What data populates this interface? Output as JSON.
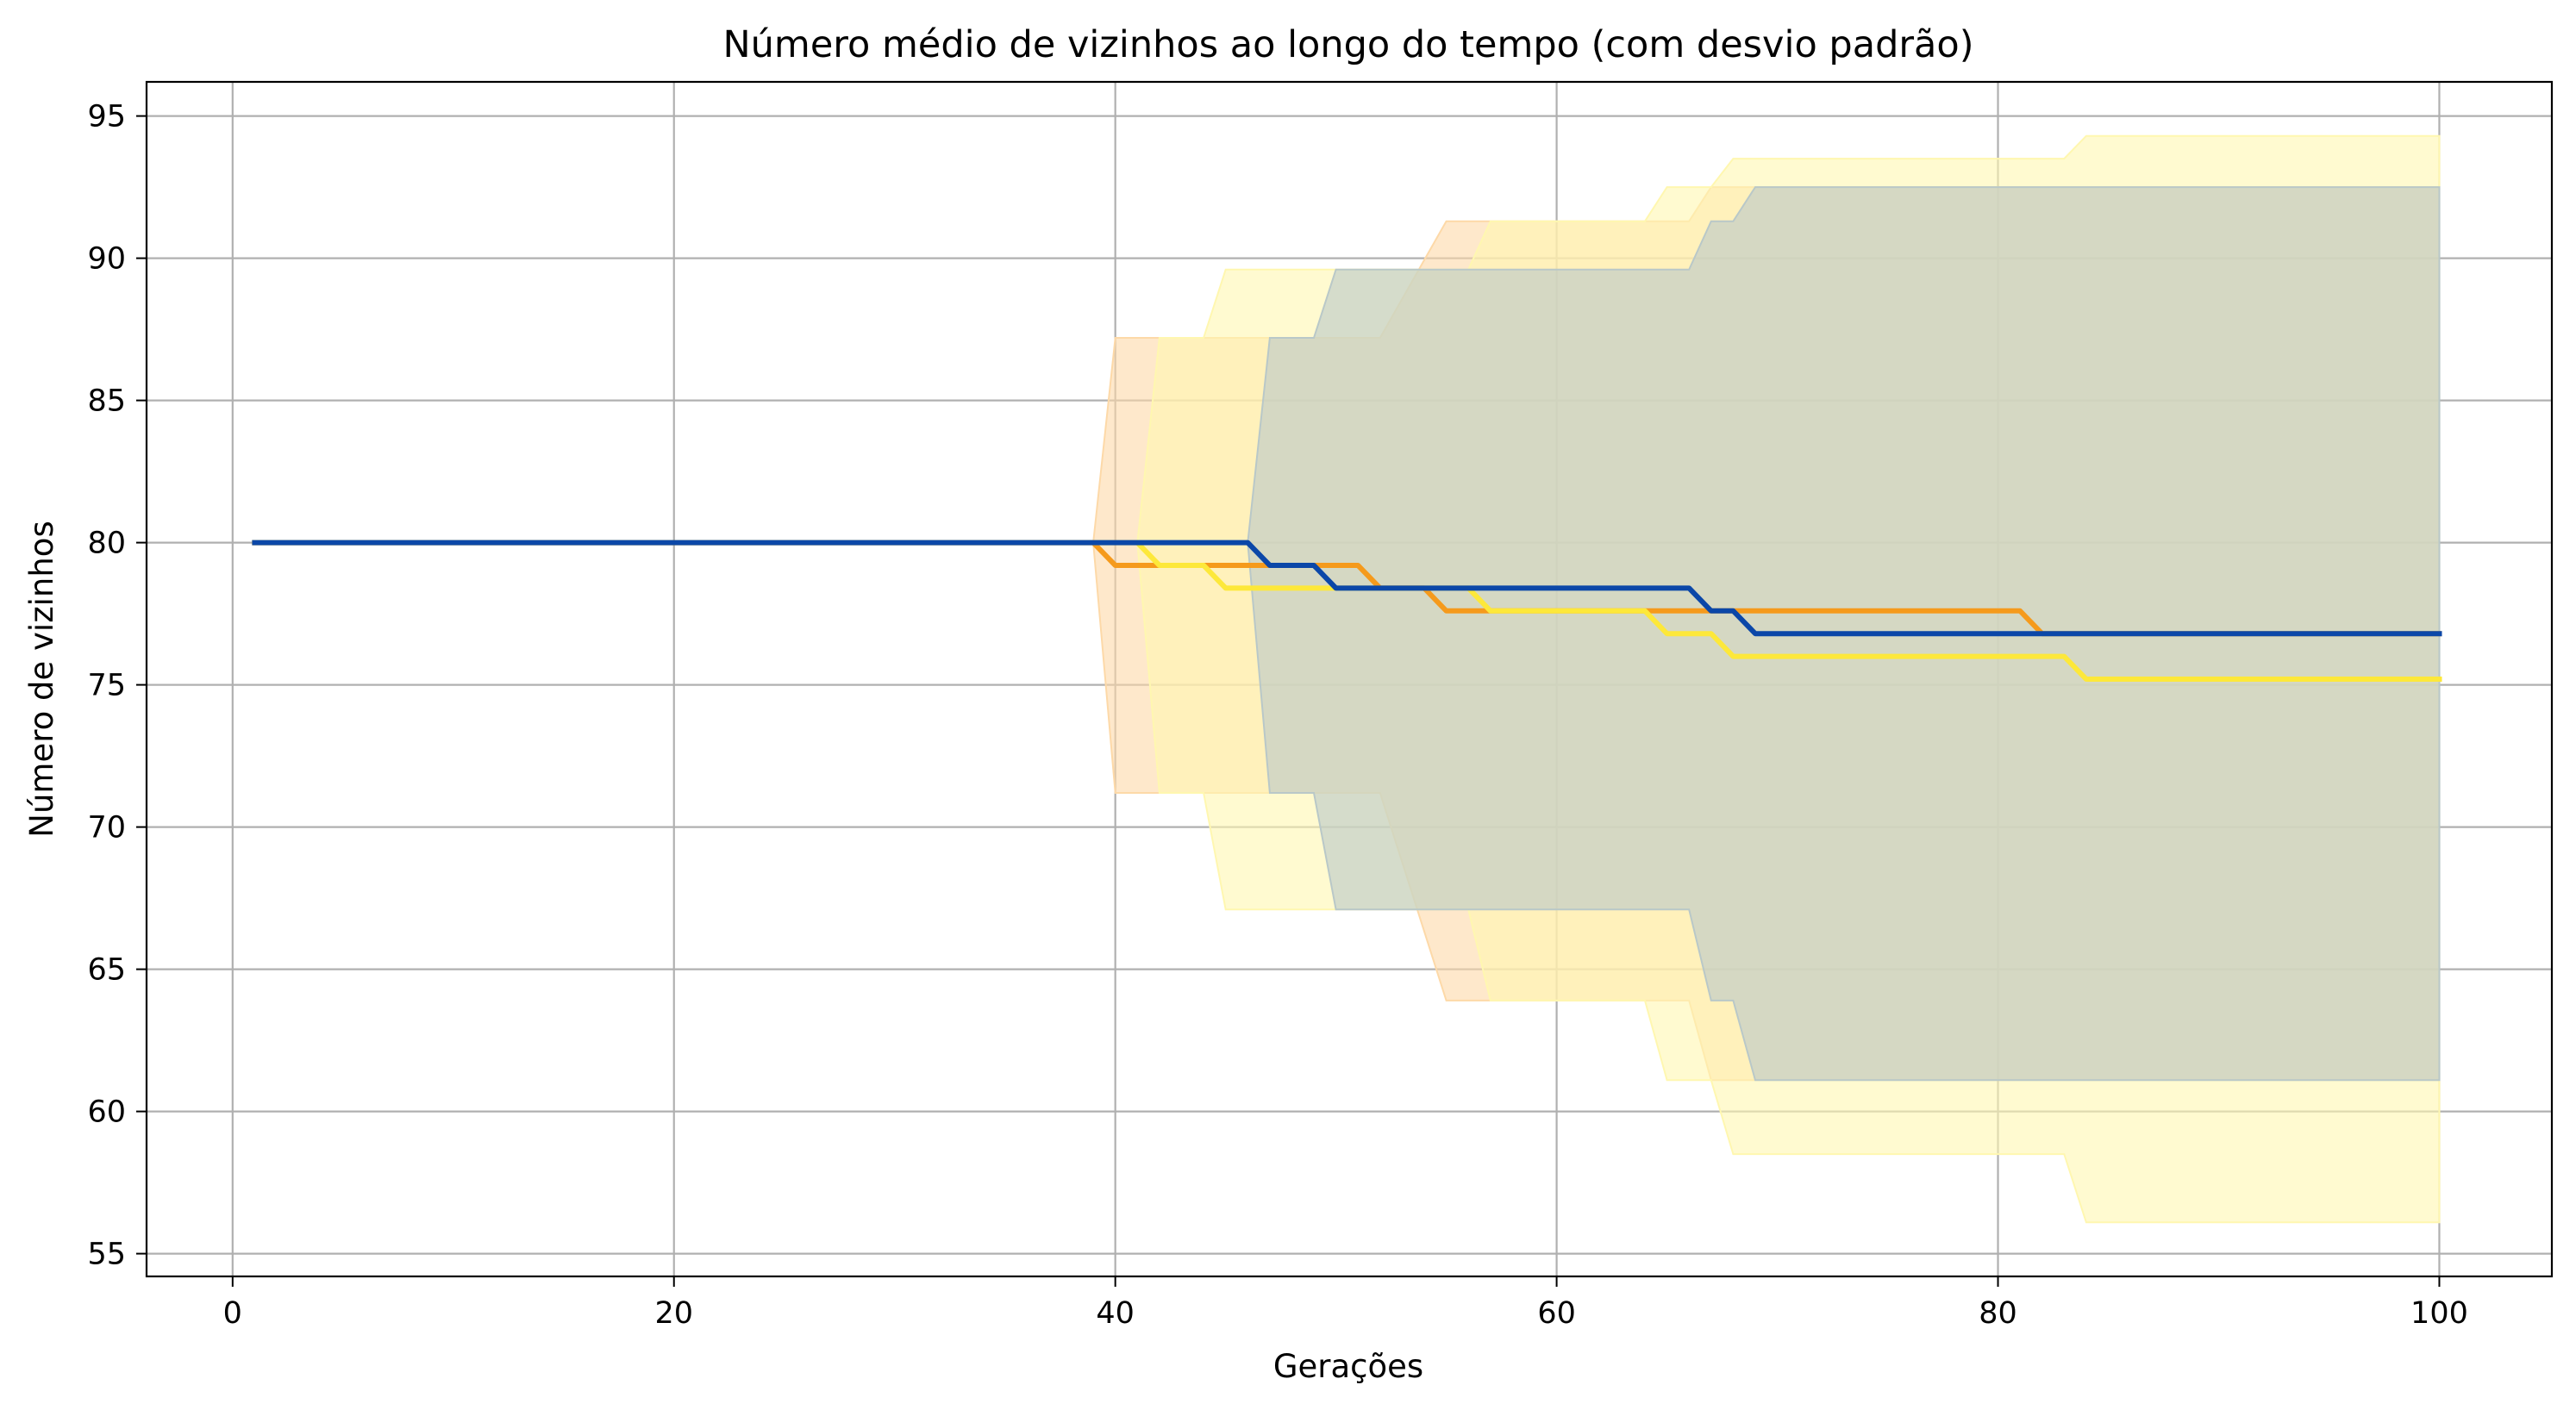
{
  "chart_data": {
    "type": "line",
    "title": "Número médio de vizinhos ao longo do tempo (com desvio padrão)",
    "xlabel": "Gerações",
    "ylabel": "Número de vizinhos",
    "xlim": [
      -3.9,
      105.1
    ],
    "ylim": [
      54.2,
      96.2
    ],
    "xticks": [
      0,
      20,
      40,
      60,
      80,
      100
    ],
    "yticks": [
      55,
      60,
      65,
      70,
      75,
      80,
      85,
      90,
      95
    ],
    "grid": true,
    "legend": "none",
    "series": [
      {
        "color": "#f59a1c",
        "band_color": "#fdd9a8",
        "mean": [
          [
            1,
            80
          ],
          [
            39,
            80
          ],
          [
            40,
            79.2
          ],
          [
            51,
            79.2
          ],
          [
            52,
            78.4
          ],
          [
            54,
            78.4
          ],
          [
            55,
            77.6
          ],
          [
            81,
            77.6
          ],
          [
            82,
            76.8
          ],
          [
            100,
            76.8
          ]
        ],
        "upper": [
          [
            39,
            80
          ],
          [
            40,
            87.2
          ],
          [
            52,
            87.2
          ],
          [
            55,
            91.3
          ],
          [
            66,
            91.3
          ],
          [
            67,
            92.5
          ],
          [
            100,
            92.5
          ]
        ],
        "lower": [
          [
            39,
            80
          ],
          [
            40,
            71.2
          ],
          [
            52,
            71.2
          ],
          [
            55,
            63.9
          ],
          [
            66,
            63.9
          ],
          [
            67,
            61.1
          ],
          [
            100,
            61.1
          ]
        ]
      },
      {
        "color": "#fde83a",
        "band_color": "#fff7b0",
        "mean": [
          [
            1,
            80
          ],
          [
            41,
            80
          ],
          [
            42,
            79.2
          ],
          [
            44,
            79.2
          ],
          [
            45,
            78.4
          ],
          [
            56,
            78.4
          ],
          [
            57,
            77.6
          ],
          [
            64,
            77.6
          ],
          [
            65,
            76.8
          ],
          [
            67,
            76.8
          ],
          [
            68,
            76
          ],
          [
            83,
            76
          ],
          [
            84,
            75.2
          ],
          [
            100,
            75.2
          ]
        ],
        "upper": [
          [
            41,
            80
          ],
          [
            42,
            87.2
          ],
          [
            44,
            87.2
          ],
          [
            45,
            89.6
          ],
          [
            56,
            89.6
          ],
          [
            57,
            91.3
          ],
          [
            64,
            91.3
          ],
          [
            65,
            92.5
          ],
          [
            67,
            92.5
          ],
          [
            68,
            93.5
          ],
          [
            83,
            93.5
          ],
          [
            84,
            94.3
          ],
          [
            100,
            94.3
          ]
        ],
        "lower": [
          [
            41,
            80
          ],
          [
            42,
            71.2
          ],
          [
            44,
            71.2
          ],
          [
            45,
            67.1
          ],
          [
            56,
            67.1
          ],
          [
            57,
            63.9
          ],
          [
            64,
            63.9
          ],
          [
            65,
            61.1
          ],
          [
            67,
            61.1
          ],
          [
            68,
            58.5
          ],
          [
            83,
            58.5
          ],
          [
            84,
            56.1
          ],
          [
            100,
            56.1
          ]
        ]
      },
      {
        "color": "#0b47a8",
        "band_color": "#b9c8c8",
        "mean": [
          [
            1,
            80
          ],
          [
            46,
            80
          ],
          [
            47,
            79.2
          ],
          [
            49,
            79.2
          ],
          [
            50,
            78.4
          ],
          [
            66,
            78.4
          ],
          [
            67,
            77.6
          ],
          [
            68,
            77.6
          ],
          [
            69,
            76.8
          ],
          [
            100,
            76.8
          ]
        ],
        "upper": [
          [
            46,
            80
          ],
          [
            47,
            87.2
          ],
          [
            49,
            87.2
          ],
          [
            50,
            89.6
          ],
          [
            66,
            89.6
          ],
          [
            67,
            91.3
          ],
          [
            68,
            91.3
          ],
          [
            69,
            92.5
          ],
          [
            100,
            92.5
          ]
        ],
        "lower": [
          [
            46,
            80
          ],
          [
            47,
            71.2
          ],
          [
            49,
            71.2
          ],
          [
            50,
            67.1
          ],
          [
            66,
            67.1
          ],
          [
            67,
            63.9
          ],
          [
            68,
            63.9
          ],
          [
            69,
            61.1
          ],
          [
            100,
            61.1
          ]
        ]
      }
    ]
  }
}
